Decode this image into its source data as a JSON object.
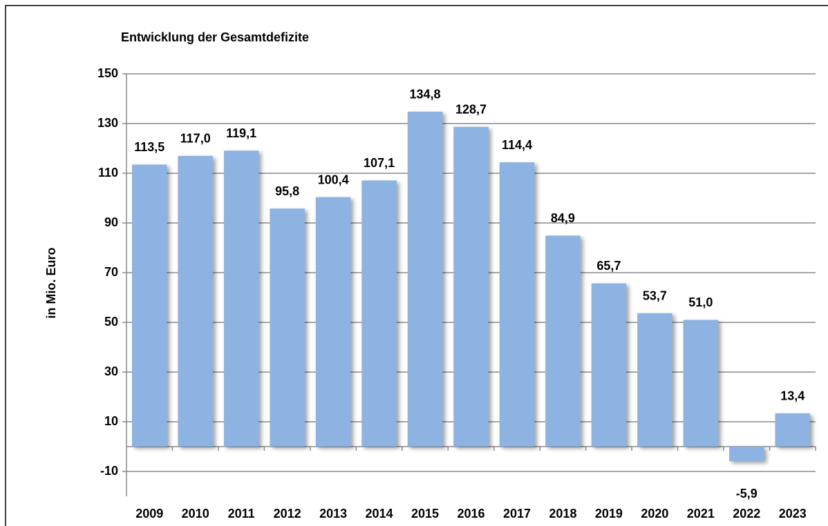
{
  "chart_data": {
    "type": "bar",
    "title": "Entwicklung der Gesamtdefizite",
    "y_label": "in Mio. Euro",
    "categories": [
      "2009",
      "2010",
      "2011",
      "2012",
      "2013",
      "2014",
      "2015",
      "2016",
      "2017",
      "2018",
      "2019",
      "2020",
      "2021",
      "2022",
      "2023"
    ],
    "values": [
      113.5,
      117.0,
      119.1,
      95.8,
      100.4,
      107.1,
      134.8,
      128.7,
      114.4,
      84.9,
      65.7,
      53.7,
      51.0,
      -5.9,
      13.4
    ],
    "value_labels": [
      "113,5",
      "117,0",
      "119,1",
      "95,8",
      "100,4",
      "107,1",
      "134,8",
      "128,7",
      "114,4",
      "84,9",
      "65,7",
      "53,7",
      "51,0",
      "-5,9",
      "13,4"
    ],
    "color": "#8db3e2",
    "ylim": [
      -20,
      150
    ],
    "yticks": [
      150,
      130,
      110,
      90,
      70,
      50,
      30,
      10,
      -10
    ],
    "grid": true
  }
}
